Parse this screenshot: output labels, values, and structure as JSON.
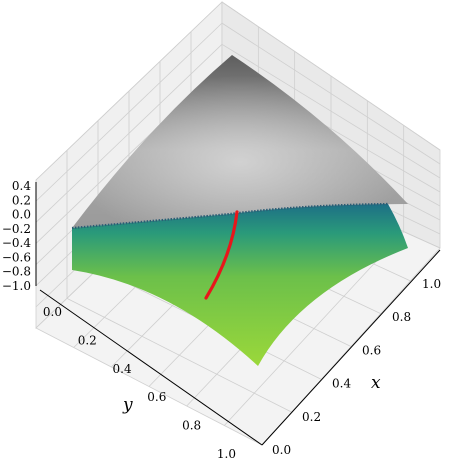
{
  "chart_data": {
    "type": "surface3d",
    "title": "",
    "xlabel": "x",
    "ylabel": "y",
    "zlabel": "",
    "x_ticks": [
      "0.0",
      "0.2",
      "0.4",
      "0.6",
      "0.8",
      "1.0"
    ],
    "y_ticks": [
      "0.0",
      "0.2",
      "0.4",
      "0.6",
      "0.8",
      "1.0"
    ],
    "z_ticks": [
      "−1.0",
      "−0.8",
      "−0.6",
      "−0.4",
      "−0.2",
      "0.0",
      "0.2",
      "0.4"
    ],
    "xlim": [
      0,
      1
    ],
    "ylim": [
      0,
      1
    ],
    "zlim": [
      -1.0,
      0.4
    ],
    "grid": true,
    "surfaces": [
      {
        "name": "",
        "color": "#8a8a8a",
        "colormap": "gray",
        "description_corner_heights": "peak at far corner"
      },
      {
        "name": "",
        "color": "#8fd13a",
        "colormap": "viridis-like (teal to lime)"
      }
    ],
    "curve": {
      "name": "",
      "color": "#e8161b"
    },
    "colors": {
      "gray_dark": "#5a5a5a",
      "gray_light": "#c8c8c8",
      "teal": "#1f7f8a",
      "lime": "#96d43a",
      "red": "#e8161b",
      "pane": "#f2f2f2"
    }
  }
}
